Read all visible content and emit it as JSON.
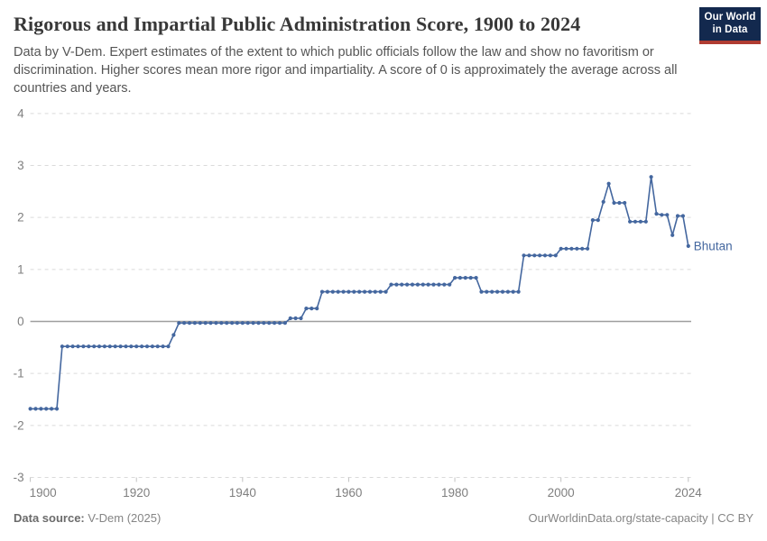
{
  "header": {
    "title": "Rigorous and Impartial Public Administration Score, 1900 to 2024",
    "subtitle": "Data by V-Dem. Expert estimates of the extent to which public officials follow the law and show no favoritism or discrimination. Higher scores mean more rigor and impartiality. A score of 0 is approximately the average across all countries and years.",
    "logo": {
      "line1": "Our World",
      "line2": "in Data",
      "bg_color": "#13294e",
      "accent_color": "#b03c32"
    }
  },
  "footer": {
    "source_label": "Data source:",
    "source_value": " V-Dem (2025)",
    "right_text": "OurWorldinData.org/state-capacity | CC BY"
  },
  "chart_data": {
    "type": "line",
    "title": "Rigorous and Impartial Public Administration Score, 1900 to 2024",
    "xlabel": "",
    "ylabel": "",
    "xlim": [
      1900,
      2024
    ],
    "ylim": [
      -3,
      4
    ],
    "x_ticks": [
      1900,
      1920,
      1940,
      1960,
      1980,
      2000,
      2024
    ],
    "y_ticks": [
      4,
      3,
      2,
      1,
      0,
      -1,
      -2,
      -3
    ],
    "grid": "horizontal-dashed, solid zero line",
    "legend_position": "end-of-line label",
    "colors": {
      "line": "#44679f",
      "grid": "#dadada",
      "zero_line": "#9e9e9e",
      "axis_text": "#7f7f7f",
      "tick_mark": "#c2c2c2"
    },
    "series": [
      {
        "name": "Bhutan",
        "points": [
          [
            1900,
            -1.68
          ],
          [
            1901,
            -1.68
          ],
          [
            1902,
            -1.68
          ],
          [
            1903,
            -1.68
          ],
          [
            1904,
            -1.68
          ],
          [
            1905,
            -1.68
          ],
          [
            1906,
            -0.48
          ],
          [
            1907,
            -0.48
          ],
          [
            1908,
            -0.48
          ],
          [
            1909,
            -0.48
          ],
          [
            1910,
            -0.48
          ],
          [
            1911,
            -0.48
          ],
          [
            1912,
            -0.48
          ],
          [
            1913,
            -0.48
          ],
          [
            1914,
            -0.48
          ],
          [
            1915,
            -0.48
          ],
          [
            1916,
            -0.48
          ],
          [
            1917,
            -0.48
          ],
          [
            1918,
            -0.48
          ],
          [
            1919,
            -0.48
          ],
          [
            1920,
            -0.48
          ],
          [
            1921,
            -0.48
          ],
          [
            1922,
            -0.48
          ],
          [
            1923,
            -0.48
          ],
          [
            1924,
            -0.48
          ],
          [
            1925,
            -0.48
          ],
          [
            1926,
            -0.48
          ],
          [
            1927,
            -0.26
          ],
          [
            1928,
            -0.03
          ],
          [
            1929,
            -0.03
          ],
          [
            1930,
            -0.03
          ],
          [
            1931,
            -0.03
          ],
          [
            1932,
            -0.03
          ],
          [
            1933,
            -0.03
          ],
          [
            1934,
            -0.03
          ],
          [
            1935,
            -0.03
          ],
          [
            1936,
            -0.03
          ],
          [
            1937,
            -0.03
          ],
          [
            1938,
            -0.03
          ],
          [
            1939,
            -0.03
          ],
          [
            1940,
            -0.03
          ],
          [
            1941,
            -0.03
          ],
          [
            1942,
            -0.03
          ],
          [
            1943,
            -0.03
          ],
          [
            1944,
            -0.03
          ],
          [
            1945,
            -0.03
          ],
          [
            1946,
            -0.03
          ],
          [
            1947,
            -0.03
          ],
          [
            1948,
            -0.03
          ],
          [
            1949,
            0.06
          ],
          [
            1950,
            0.06
          ],
          [
            1951,
            0.06
          ],
          [
            1952,
            0.25
          ],
          [
            1953,
            0.25
          ],
          [
            1954,
            0.25
          ],
          [
            1955,
            0.57
          ],
          [
            1956,
            0.57
          ],
          [
            1957,
            0.57
          ],
          [
            1958,
            0.57
          ],
          [
            1959,
            0.57
          ],
          [
            1960,
            0.57
          ],
          [
            1961,
            0.57
          ],
          [
            1962,
            0.57
          ],
          [
            1963,
            0.57
          ],
          [
            1964,
            0.57
          ],
          [
            1965,
            0.57
          ],
          [
            1966,
            0.57
          ],
          [
            1967,
            0.57
          ],
          [
            1968,
            0.71
          ],
          [
            1969,
            0.71
          ],
          [
            1970,
            0.71
          ],
          [
            1971,
            0.71
          ],
          [
            1972,
            0.71
          ],
          [
            1973,
            0.71
          ],
          [
            1974,
            0.71
          ],
          [
            1975,
            0.71
          ],
          [
            1976,
            0.71
          ],
          [
            1977,
            0.71
          ],
          [
            1978,
            0.71
          ],
          [
            1979,
            0.71
          ],
          [
            1980,
            0.84
          ],
          [
            1981,
            0.84
          ],
          [
            1982,
            0.84
          ],
          [
            1983,
            0.84
          ],
          [
            1984,
            0.84
          ],
          [
            1985,
            0.57
          ],
          [
            1986,
            0.57
          ],
          [
            1987,
            0.57
          ],
          [
            1988,
            0.57
          ],
          [
            1989,
            0.57
          ],
          [
            1990,
            0.57
          ],
          [
            1991,
            0.57
          ],
          [
            1992,
            0.57
          ],
          [
            1993,
            1.27
          ],
          [
            1994,
            1.27
          ],
          [
            1995,
            1.27
          ],
          [
            1996,
            1.27
          ],
          [
            1997,
            1.27
          ],
          [
            1998,
            1.27
          ],
          [
            1999,
            1.27
          ],
          [
            2000,
            1.4
          ],
          [
            2001,
            1.4
          ],
          [
            2002,
            1.4
          ],
          [
            2003,
            1.4
          ],
          [
            2004,
            1.4
          ],
          [
            2005,
            1.4
          ],
          [
            2006,
            1.95
          ],
          [
            2007,
            1.95
          ],
          [
            2008,
            2.3
          ],
          [
            2009,
            2.65
          ],
          [
            2010,
            2.28
          ],
          [
            2011,
            2.28
          ],
          [
            2012,
            2.28
          ],
          [
            2013,
            1.92
          ],
          [
            2014,
            1.92
          ],
          [
            2015,
            1.92
          ],
          [
            2016,
            1.92
          ],
          [
            2017,
            2.78
          ],
          [
            2018,
            2.07
          ],
          [
            2019,
            2.05
          ],
          [
            2020,
            2.05
          ],
          [
            2021,
            1.66
          ],
          [
            2022,
            2.03
          ],
          [
            2023,
            2.03
          ],
          [
            2024,
            1.45
          ]
        ]
      }
    ]
  }
}
